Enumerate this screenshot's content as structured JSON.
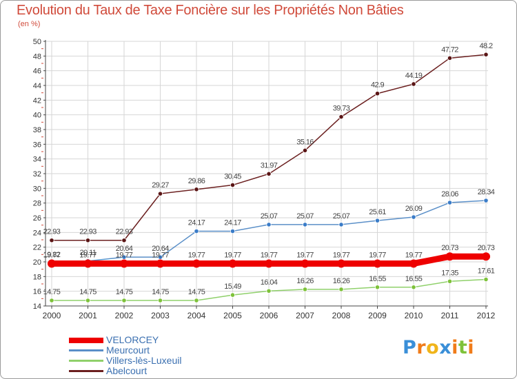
{
  "title": "Evolution du Taux de Taxe Foncière sur les Propriétés Non Bâties",
  "unit_label": "(en %)",
  "logo": {
    "text": "Proxiti",
    "letters": [
      {
        "ch": "P",
        "color": "#3a8fd8"
      },
      {
        "ch": "r",
        "color": "#f07c1a"
      },
      {
        "ch": "o",
        "color": "#f0b41a"
      },
      {
        "ch": "x",
        "color": "#3a8fd8"
      },
      {
        "ch": "i",
        "color": "#f07c1a"
      },
      {
        "ch": "t",
        "color": "#7ec23a"
      },
      {
        "ch": "i",
        "color": "#f07c1a"
      }
    ]
  },
  "chart_data": {
    "type": "line",
    "title": "Evolution du Taux de Taxe Foncière sur les Propriétés Non Bâties",
    "ylabel": "(en %)",
    "x": [
      2000,
      2001,
      2002,
      2003,
      2004,
      2005,
      2006,
      2007,
      2008,
      2009,
      2010,
      2011,
      2012
    ],
    "ylim": [
      14,
      50
    ],
    "yticks": [
      14,
      16,
      18,
      20,
      22,
      24,
      26,
      28,
      30,
      32,
      34,
      36,
      38,
      40,
      42,
      44,
      46,
      48,
      50
    ],
    "grid": true,
    "legend": "bottom-left",
    "series": [
      {
        "name": "Abelcourt",
        "color": "#6b1f1f",
        "point_color": "#5a1515",
        "width": 1.5,
        "point_radius": 3.2,
        "values": [
          22.93,
          22.93,
          22.93,
          29.27,
          29.86,
          30.45,
          31.97,
          35.16,
          39.73,
          42.9,
          44.19,
          47.72,
          48.2
        ],
        "labels": [
          "22.93",
          "22.93",
          "22.93",
          "29.27",
          "29.86",
          "30.45",
          "31.97",
          "35.16",
          "39.73",
          "42.9",
          "44.19",
          "47.72",
          "48.2"
        ]
      },
      {
        "name": "Meurcourt",
        "color": "#5a8fc8",
        "point_color": "#3a7cc8",
        "width": 1.5,
        "point_radius": 3.2,
        "values": [
          19.82,
          20.11,
          20.64,
          20.64,
          24.17,
          24.17,
          25.07,
          25.07,
          25.07,
          25.61,
          26.09,
          28.06,
          28.34
        ],
        "labels": [
          "19.82",
          "20.11",
          "20.64",
          "20.64",
          "24.17",
          "24.17",
          "25.07",
          "25.07",
          "25.07",
          "25.61",
          "26.09",
          "28.06",
          "28.34"
        ]
      },
      {
        "name": "Villers-lès-Luxeuil",
        "color": "#8fd06a",
        "point_color": "#7ec23a",
        "width": 1.5,
        "point_radius": 3.2,
        "values": [
          14.75,
          14.75,
          14.75,
          14.75,
          14.75,
          15.49,
          16.04,
          16.26,
          16.26,
          16.55,
          16.55,
          17.35,
          17.61
        ],
        "labels": [
          "14.75",
          "14.75",
          "14.75",
          "14.75",
          "14.75",
          "15.49",
          "16.04",
          "16.26",
          "16.26",
          "16.55",
          "16.55",
          "17.35",
          "17.61"
        ]
      },
      {
        "name": "VELORCEY",
        "color": "#ee0000",
        "point_color": "#ee0000",
        "width": 9,
        "point_radius": 6,
        "values": [
          19.77,
          19.77,
          19.77,
          19.77,
          19.77,
          19.77,
          19.77,
          19.77,
          19.77,
          19.77,
          19.77,
          20.73,
          20.73
        ],
        "labels": [
          "19.77",
          "19.77",
          "19.77",
          "19.77",
          "19.77",
          "19.77",
          "19.77",
          "19.77",
          "19.77",
          "19.77",
          "19.77",
          "20.73",
          "20.73"
        ]
      }
    ],
    "legend_order": [
      "VELORCEY",
      "Meurcourt",
      "Villers-lès-Luxeuil",
      "Abelcourt"
    ]
  }
}
